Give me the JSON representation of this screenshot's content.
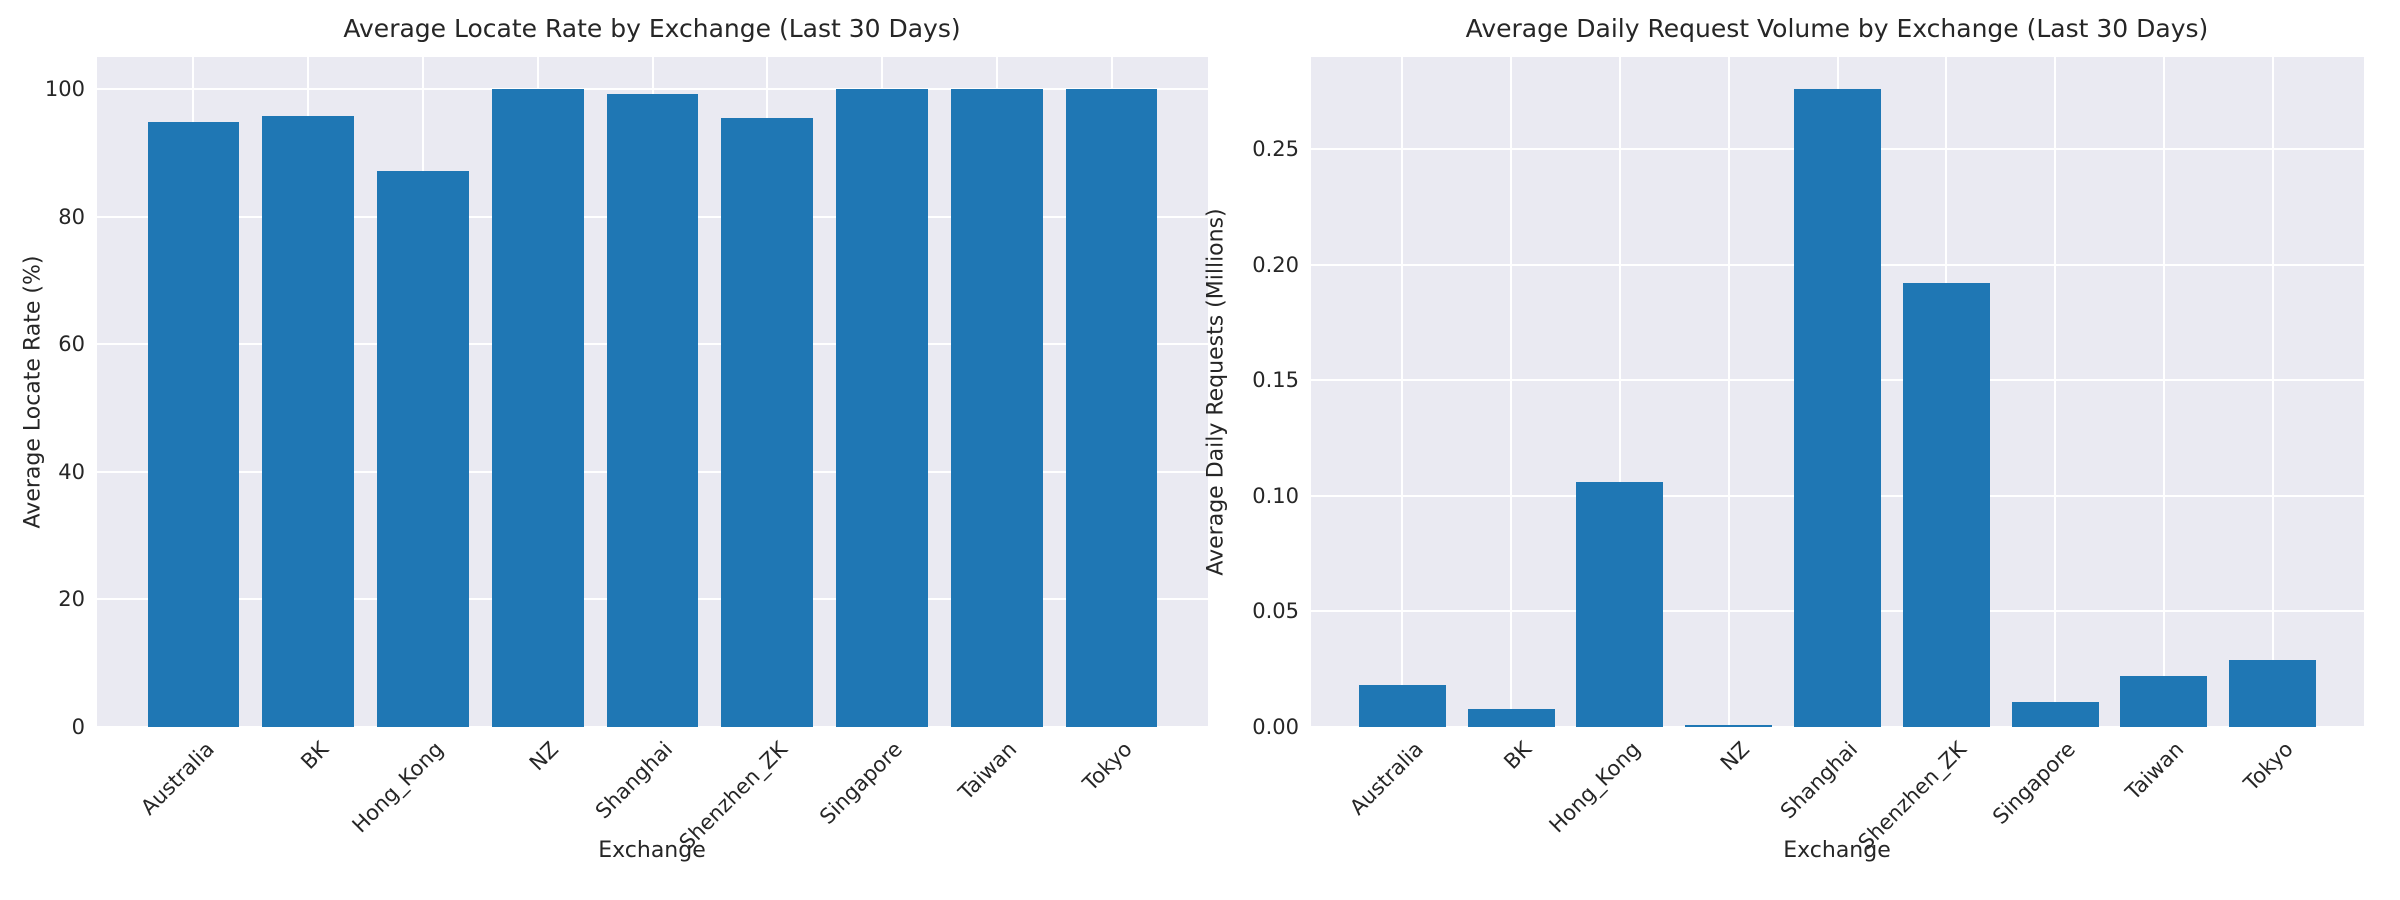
{
  "figure": {
    "background": "#ffffff",
    "style": "seaborn-darkgrid",
    "axes_background": "#eaeaf2",
    "grid_color": "#ffffff",
    "bar_color": "#1f77b4",
    "text_color": "#262626"
  },
  "chart_data": [
    {
      "type": "bar",
      "title": "Average Locate Rate by Exchange (Last 30 Days)",
      "xlabel": "Exchange",
      "ylabel": "Average Locate Rate (%)",
      "categories": [
        "Australia",
        "BK",
        "Hong_Kong",
        "NZ",
        "Shanghai",
        "Shenzhen_ZK",
        "Singapore",
        "Taiwan",
        "Tokyo"
      ],
      "values": [
        94.8,
        95.8,
        87.1,
        100,
        99.2,
        95.4,
        100,
        100,
        100
      ],
      "ylim": [
        0,
        105
      ],
      "yticks": [
        0,
        20,
        40,
        60,
        80,
        100
      ],
      "ytick_labels": [
        "0",
        "20",
        "40",
        "60",
        "80",
        "100"
      ],
      "xtick_rotation": 45,
      "grid": true,
      "legend": null,
      "bar_color": "#1f77b4"
    },
    {
      "type": "bar",
      "title": "Average Daily Request Volume by Exchange (Last 30 Days)",
      "xlabel": "Exchange",
      "ylabel": "Average Daily Requests (Millions)",
      "categories": [
        "Australia",
        "BK",
        "Hong_Kong",
        "NZ",
        "Shanghai",
        "Shenzhen_ZK",
        "Singapore",
        "Taiwan",
        "Tokyo"
      ],
      "values": [
        0.018,
        0.008,
        0.106,
        0.001,
        0.276,
        0.192,
        0.011,
        0.022,
        0.029
      ],
      "ylim": [
        0,
        0.29
      ],
      "yticks": [
        0,
        0.05,
        0.1,
        0.15,
        0.2,
        0.25
      ],
      "ytick_labels": [
        "0.00",
        "0.05",
        "0.10",
        "0.15",
        "0.20",
        "0.25"
      ],
      "xtick_rotation": 45,
      "grid": true,
      "legend": null,
      "bar_color": "#1f77b4"
    }
  ]
}
